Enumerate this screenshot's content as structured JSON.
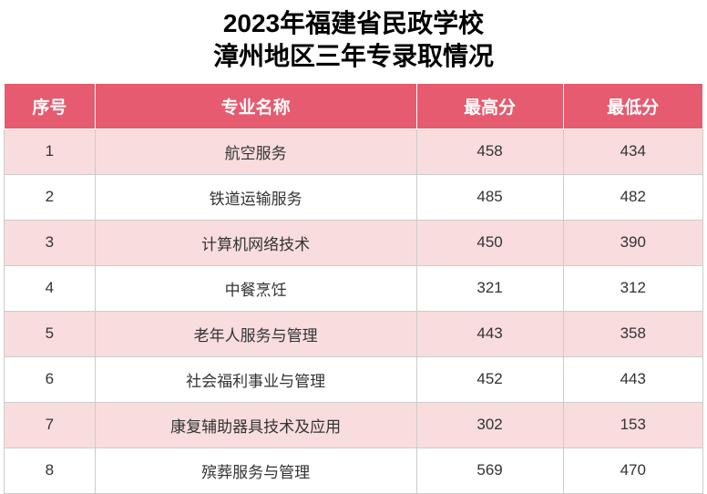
{
  "title_line1": "2023年福建省民政学校",
  "title_line2": "漳州地区三年专录取情况",
  "headers": {
    "index": "序号",
    "major": "专业名称",
    "high": "最高分",
    "low": "最低分"
  },
  "colors": {
    "header_bg": "#e65b6f",
    "header_text": "#ffffff",
    "row_odd_bg": "#f9ddde",
    "row_even_bg": "#ffffff",
    "cell_text": "#333333",
    "border": "#cccccc"
  },
  "typography": {
    "title_fontsize": 28,
    "title_fontweight": "bold",
    "header_fontsize": 19,
    "cell_fontsize": 17
  },
  "column_widths": {
    "index": "13%",
    "major": "46%",
    "high": "21%",
    "low": "20%"
  },
  "rows": [
    {
      "index": "1",
      "major": "航空服务",
      "high": "458",
      "low": "434"
    },
    {
      "index": "2",
      "major": "铁道运输服务",
      "high": "485",
      "low": "482"
    },
    {
      "index": "3",
      "major": "计算机网络技术",
      "high": "450",
      "low": "390"
    },
    {
      "index": "4",
      "major": "中餐烹饪",
      "high": "321",
      "low": "312"
    },
    {
      "index": "5",
      "major": "老年人服务与管理",
      "high": "443",
      "low": "358"
    },
    {
      "index": "6",
      "major": "社会福利事业与管理",
      "high": "452",
      "low": "443"
    },
    {
      "index": "7",
      "major": "康复辅助器具技术及应用",
      "high": "302",
      "low": "153"
    },
    {
      "index": "8",
      "major": "殡葬服务与管理",
      "high": "569",
      "low": "470"
    }
  ]
}
